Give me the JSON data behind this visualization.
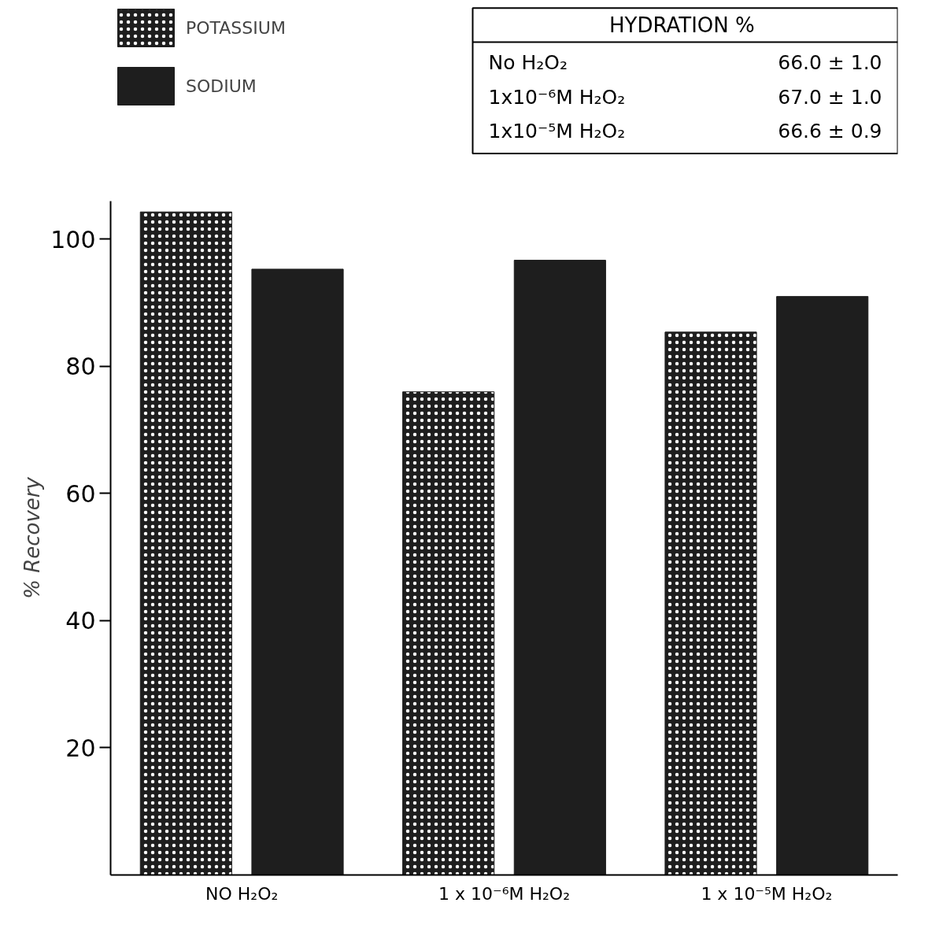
{
  "chart_data": {
    "type": "bar",
    "ylabel": "% Recovery",
    "categories": [
      "NO H₂O₂",
      "1 x 10⁻⁶M H₂O₂",
      "1 x 10⁻⁵M H₂O₂"
    ],
    "series": [
      {
        "name": "POTASSIUM",
        "color": "#1e1e1e",
        "values": [
          104.3,
          76.0,
          85.4
        ]
      },
      {
        "name": "SODIUM",
        "color": "#1e1e1e",
        "values": [
          95.3,
          96.7,
          91.0
        ]
      }
    ],
    "ylim": [
      0,
      106
    ],
    "yticks": [
      20,
      40,
      60,
      80,
      100
    ],
    "grid": false,
    "legend": "top left",
    "annotations": [
      "HYDRATION  %",
      "No H₂O₂",
      "66.0 ± 1.0",
      "1x10⁻⁶M H₂O₂",
      "67.0 ± 1.0",
      "1x10⁻⁵M H₂O₂",
      "66.6 ± 0.9"
    ]
  }
}
